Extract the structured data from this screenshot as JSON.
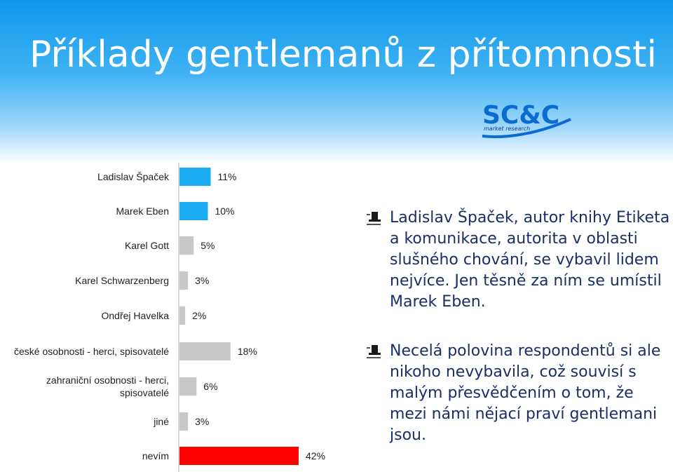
{
  "slide": {
    "title": "Příklady gentlemanů z přítomnosti",
    "logo": {
      "main": "SC&C",
      "sub": "market research"
    }
  },
  "bullets": [
    {
      "text": "Ladislav Špaček, autor knihy Etiketa a komunikace, autorita v oblasti slušného chování, se vybavil lidem nejvíce. Jen těsně za ním se umístil Marek Eben.",
      "icon": "top-hat-icon"
    },
    {
      "text": "Necelá polovina respondentů si ale nikoho nevybavila, což souvisí s malým přesvědčením o tom, že mezi námi nějací praví gentlemani jsou.",
      "icon": "top-hat-icon"
    }
  ],
  "colors": {
    "blue": "#1aaaf0",
    "gray": "#c8c8c8",
    "red": "#ff0000",
    "text": "#1a2f66"
  },
  "chart_data": {
    "type": "bar",
    "orientation": "horizontal",
    "categories": [
      "Ladislav Špaček",
      "Marek Eben",
      "Karel Gott",
      "Karel Schwarzenberg",
      "Ondřej Havelka",
      "české osobnosti - herci, spisovatelé",
      "zahraniční osobnosti - herci, spisovatelé",
      "jiné",
      "nevím"
    ],
    "category_lines": [
      [
        "Ladislav Špaček"
      ],
      [
        "Marek Eben"
      ],
      [
        "Karel Gott"
      ],
      [
        "Karel Schwarzenberg"
      ],
      [
        "Ondřej Havelka"
      ],
      [
        "české osobnosti - herci, spisovatelé"
      ],
      [
        "zahraniční osobnosti - herci,",
        "spisovatelé"
      ],
      [
        "jiné"
      ],
      [
        "nevím"
      ]
    ],
    "values": [
      11,
      10,
      5,
      3,
      2,
      18,
      6,
      3,
      42
    ],
    "labels": [
      "11%",
      "10%",
      "5%",
      "3%",
      "2%",
      "18%",
      "6%",
      "3%",
      "42%"
    ],
    "bar_colors": [
      "#1aaaf0",
      "#1aaaf0",
      "#c8c8c8",
      "#c8c8c8",
      "#c8c8c8",
      "#c8c8c8",
      "#c8c8c8",
      "#c8c8c8",
      "#ff0000"
    ],
    "xlim": [
      0,
      42
    ],
    "grid": false,
    "legend": "none"
  }
}
